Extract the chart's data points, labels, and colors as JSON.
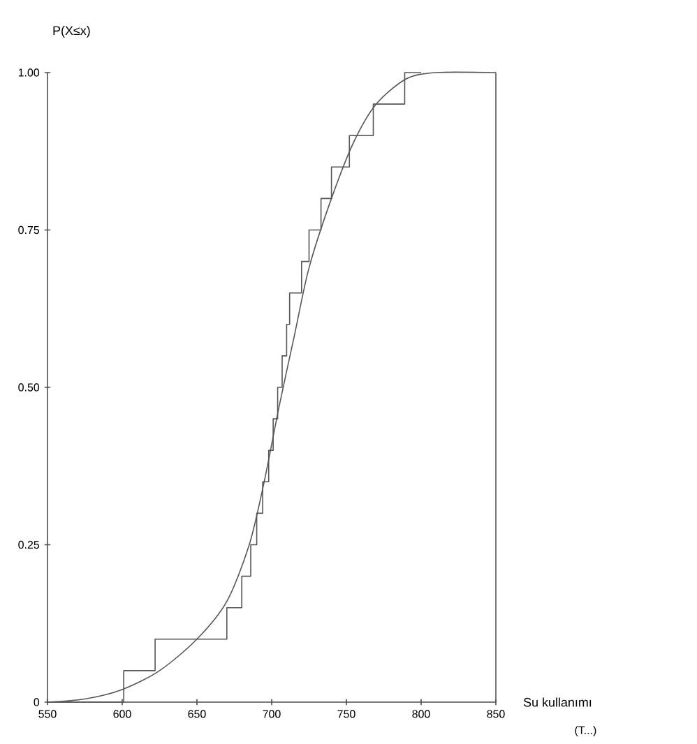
{
  "chart_data": {
    "type": "line",
    "ylabel": "P(X≤x)",
    "xlabel": "Su kullanımı",
    "annotations": [
      "(T...)"
    ],
    "xlim": [
      550,
      850
    ],
    "ylim": [
      0,
      1
    ],
    "xticks": [
      550,
      600,
      650,
      700,
      750,
      800,
      850
    ],
    "yticks": [
      {
        "value": 0,
        "label": "0"
      },
      {
        "value": 0.25,
        "label": "0.25"
      },
      {
        "value": 0.5,
        "label": "0.50"
      },
      {
        "value": 0.75,
        "label": "0.75"
      },
      {
        "value": 1,
        "label": "1.00"
      }
    ],
    "ref_lines": [
      {
        "axis": "x",
        "value": 850,
        "color": "#555555"
      }
    ],
    "series": [
      {
        "type": "step",
        "color": "#555555",
        "x": [
          550,
          601,
          622,
          670,
          680,
          686,
          690,
          694,
          698,
          701,
          704,
          707,
          710,
          712,
          720,
          725,
          733,
          740,
          752,
          768,
          789,
          800
        ],
        "values": [
          0,
          0.05,
          0.1,
          0.15,
          0.2,
          0.25,
          0.3,
          0.35,
          0.4,
          0.45,
          0.5,
          0.55,
          0.6,
          0.65,
          0.7,
          0.75,
          0.8,
          0.85,
          0.9,
          0.95,
          1.0,
          1.0
        ]
      },
      {
        "type": "line",
        "color": "#555555",
        "x": [
          550,
          575,
          600,
          625,
          650,
          670,
          685,
          695,
          705,
          715,
          725,
          740,
          755,
          770,
          790,
          810,
          850
        ],
        "values": [
          0,
          0.005,
          0.02,
          0.05,
          0.1,
          0.16,
          0.25,
          0.35,
          0.47,
          0.58,
          0.69,
          0.8,
          0.89,
          0.95,
          0.99,
          1.0,
          1.0
        ]
      }
    ]
  }
}
